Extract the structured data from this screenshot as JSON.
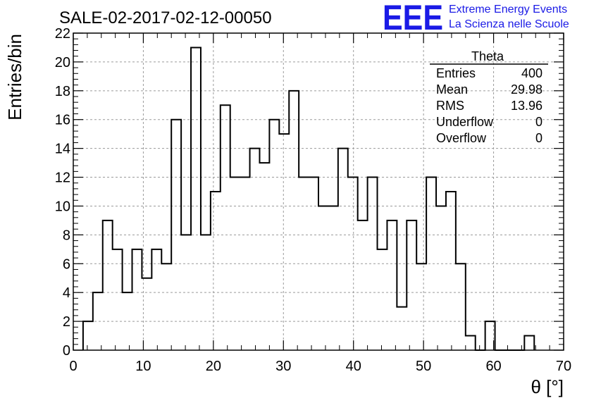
{
  "header": {
    "title": "SALE-02-2017-02-12-00050",
    "brand_logo": "EEE",
    "brand_line1": "Extreme Energy Events",
    "brand_line2": "La Scienza nelle Scuole",
    "brand_color": "#1a1ae6"
  },
  "stats_box": {
    "title": "Theta",
    "rows": [
      {
        "label": "Entries",
        "value": "400"
      },
      {
        "label": "Mean",
        "value": "29.98"
      },
      {
        "label": "RMS",
        "value": "13.96"
      },
      {
        "label": "Underflow",
        "value": "0"
      },
      {
        "label": "Overflow",
        "value": "0"
      }
    ]
  },
  "chart_data": {
    "type": "bar",
    "style": "step-histogram",
    "xlabel": "θ [°]",
    "ylabel": "Entries/bin",
    "xlim": [
      0,
      70
    ],
    "ylim": [
      0,
      22
    ],
    "x_ticks": [
      0,
      10,
      20,
      30,
      40,
      50,
      60,
      70
    ],
    "y_ticks": [
      0,
      2,
      4,
      6,
      8,
      10,
      12,
      14,
      16,
      18,
      20,
      22
    ],
    "grid": true,
    "bin_edges": [
      1.4,
      2.8,
      4.2,
      5.6,
      7.0,
      8.4,
      9.8,
      11.2,
      12.6,
      14.0,
      15.4,
      16.8,
      18.2,
      19.6,
      21.0,
      22.4,
      23.8,
      25.2,
      26.6,
      28.0,
      29.4,
      30.8,
      32.2,
      33.6,
      35.0,
      36.4,
      37.8,
      39.2,
      40.6,
      42.0,
      43.4,
      44.8,
      46.2,
      47.6,
      49.0,
      50.4,
      51.8,
      53.2,
      54.6,
      56.0,
      57.4,
      58.8,
      60.2,
      61.6,
      63.0,
      64.4,
      65.8
    ],
    "values": [
      2,
      4,
      9,
      7,
      4,
      7,
      5,
      7,
      6,
      16,
      8,
      21,
      8,
      11,
      17,
      12,
      12,
      14,
      13,
      16,
      15,
      18,
      12,
      12,
      10,
      10,
      14,
      12,
      9,
      12,
      7,
      9,
      3,
      9,
      6,
      12,
      10,
      11,
      6,
      1,
      0,
      2,
      0,
      0,
      0,
      1
    ]
  }
}
